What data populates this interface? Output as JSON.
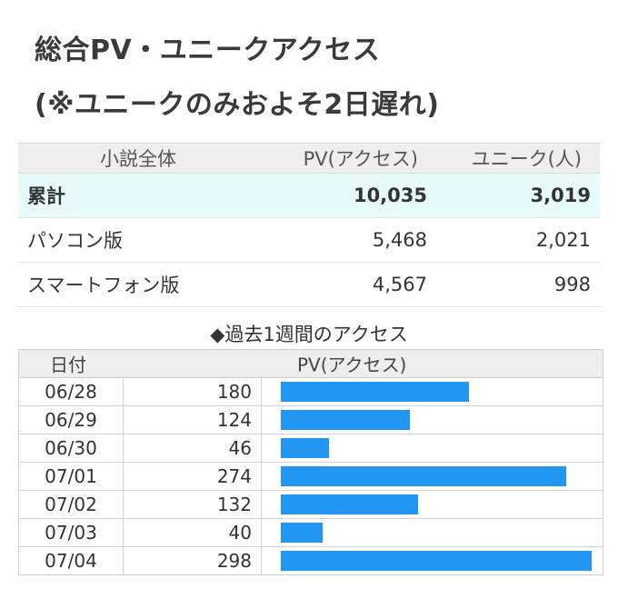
{
  "title_line1": "総合PV・ユニークアクセス",
  "title_line2": "(※ユニークのみおよそ2日遅れ)",
  "summary": {
    "headers": {
      "label": "小説全体",
      "pv": "PV(アクセス)",
      "unique": "ユニーク(人)"
    },
    "rows": [
      {
        "label": "累計",
        "pv": "10,035",
        "unique": "3,019"
      },
      {
        "label": "パソコン版",
        "pv": "5,468",
        "unique": "2,021"
      },
      {
        "label": "スマートフォン版",
        "pv": "4,567",
        "unique": "998"
      }
    ]
  },
  "weekly": {
    "title": "◆過去1週間のアクセス",
    "headers": {
      "date": "日付",
      "pv": "PV(アクセス)"
    },
    "rows": [
      {
        "date": "06/28",
        "pv": "180"
      },
      {
        "date": "06/29",
        "pv": "124"
      },
      {
        "date": "06/30",
        "pv": "46"
      },
      {
        "date": "07/01",
        "pv": "274"
      },
      {
        "date": "07/02",
        "pv": "132"
      },
      {
        "date": "07/03",
        "pv": "40"
      },
      {
        "date": "07/04",
        "pv": "298"
      }
    ],
    "bar_color": "#2196f3",
    "bar_max": 298
  }
}
